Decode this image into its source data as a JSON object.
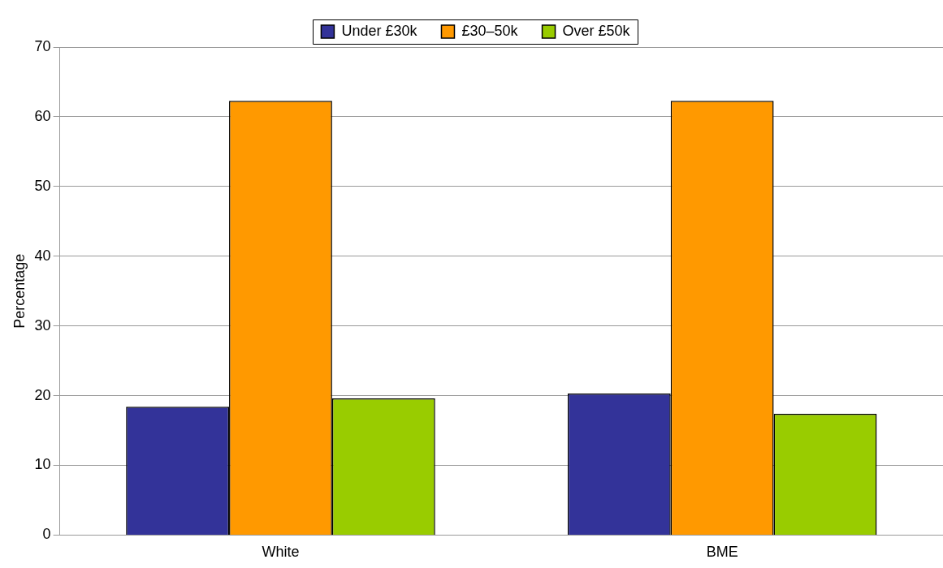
{
  "chart_data": {
    "type": "bar",
    "ylabel": "Percentage",
    "categories": [
      "White",
      "BME"
    ],
    "series": [
      {
        "name": "Under £30k",
        "color": "#333399",
        "values": [
          18.4,
          20.3
        ]
      },
      {
        "name": "£30–50k",
        "color": "#ff9900",
        "values": [
          62.3,
          62.3
        ]
      },
      {
        "name": "Over £50k",
        "color": "#99cc00",
        "values": [
          19.6,
          17.4
        ]
      }
    ],
    "ylim": [
      0,
      70
    ],
    "yticks": [
      0,
      10,
      20,
      30,
      40,
      50,
      60,
      70
    ],
    "grid": "y",
    "legend": "top"
  }
}
